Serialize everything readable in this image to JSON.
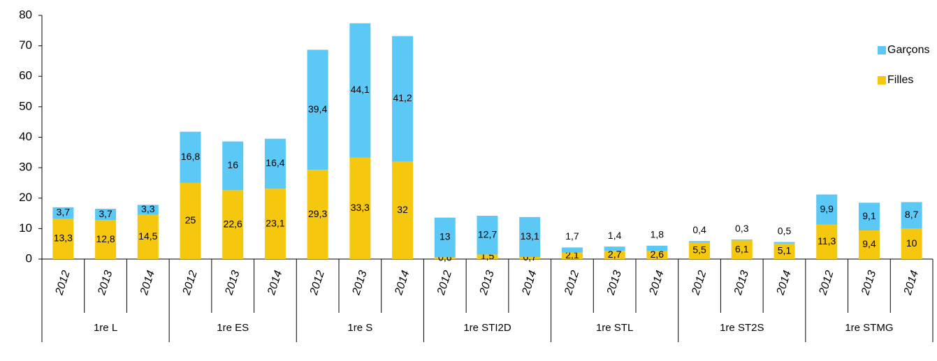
{
  "chart_data": {
    "type": "stacked-bar",
    "groups": [
      "1re L",
      "1re ES",
      "1re S",
      "1re STI2D",
      "1re STL",
      "1re ST2S",
      "1re STMG"
    ],
    "categories": [
      "2012",
      "2013",
      "2014",
      "2012",
      "2013",
      "2014",
      "2012",
      "2013",
      "2014",
      "2012",
      "2013",
      "2014",
      "2012",
      "2013",
      "2014",
      "2012",
      "2013",
      "2014",
      "2012",
      "2013",
      "2014"
    ],
    "series": [
      {
        "name": "Filles",
        "color": "#f5c70f",
        "values": [
          13.3,
          12.8,
          14.5,
          25,
          22.6,
          23.1,
          29.3,
          33.3,
          32,
          0.6,
          1.5,
          0.7,
          2.1,
          2.7,
          2.6,
          5.5,
          6.1,
          5.1,
          11.3,
          9.4,
          10
        ],
        "value_labels": [
          "13,3",
          "12,8",
          "14,5",
          "25",
          "22,6",
          "23,1",
          "29,3",
          "33,3",
          "32",
          "0,6",
          "1,5",
          "0,7",
          "2,1",
          "2,7",
          "2,6",
          "5,5",
          "6,1",
          "5,1",
          "11,3",
          "9,4",
          "10"
        ]
      },
      {
        "name": "Garçons",
        "color": "#5bc8f5",
        "values": [
          3.7,
          3.7,
          3.3,
          16.8,
          16,
          16.4,
          39.4,
          44.1,
          41.2,
          13,
          12.7,
          13.1,
          1.7,
          1.4,
          1.8,
          0.4,
          0.3,
          0.5,
          9.9,
          9.1,
          8.7
        ],
        "value_labels": [
          "3,7",
          "3,7",
          "3,3",
          "16,8",
          "16",
          "16,4",
          "39,4",
          "44,1",
          "41,2",
          "13",
          "12,7",
          "13,1",
          "1,7",
          "1,4",
          "1,8",
          "0,4",
          "0,3",
          "0,5",
          "9,9",
          "9,1",
          "8,7"
        ]
      }
    ],
    "ylim": [
      0,
      80
    ],
    "yticks": [
      0,
      10,
      20,
      30,
      40,
      50,
      60,
      70,
      80
    ],
    "grid": false,
    "legend": "top-right"
  }
}
